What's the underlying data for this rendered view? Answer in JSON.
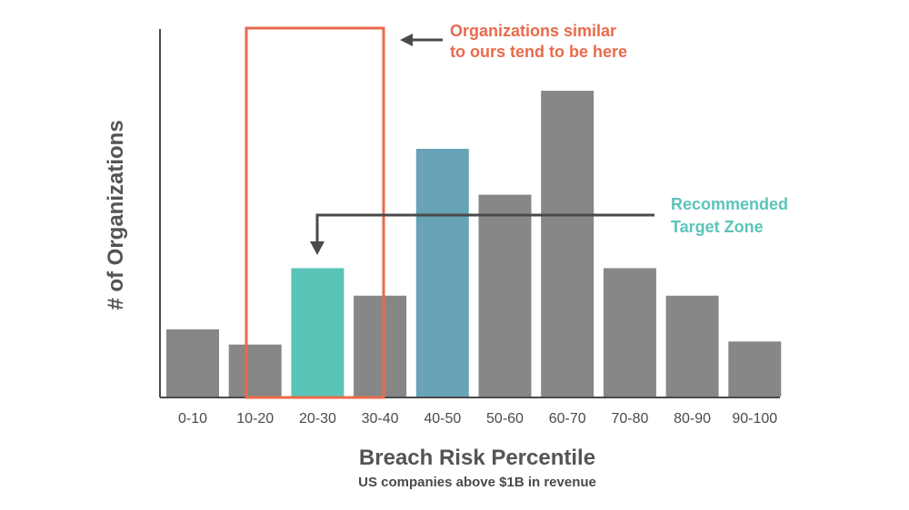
{
  "chart_data": {
    "type": "bar",
    "categories": [
      "0-10",
      "10-20",
      "20-30",
      "30-40",
      "40-50",
      "50-60",
      "60-70",
      "70-80",
      "80-90",
      "90-100"
    ],
    "values": [
      22,
      17,
      42,
      33,
      81,
      66,
      100,
      42,
      33,
      18
    ],
    "ylim": [
      0,
      100
    ],
    "xlabel": "Breach Risk Percentile",
    "subtitle": "US companies above $1B in revenue",
    "ylabel": "# of Organizations",
    "grid": false,
    "colors": {
      "default": "#878787",
      "20-30": "#5bc4b8",
      "40-50": "#68a3b8",
      "highlight_box": "#ea6a4c",
      "axis": "#4a4a4a"
    },
    "annotations": {
      "similar_line1": "Organizations similar",
      "similar_line2": "to ours tend to be here",
      "target_line1": "Recommended",
      "target_line2": "Target Zone"
    }
  }
}
